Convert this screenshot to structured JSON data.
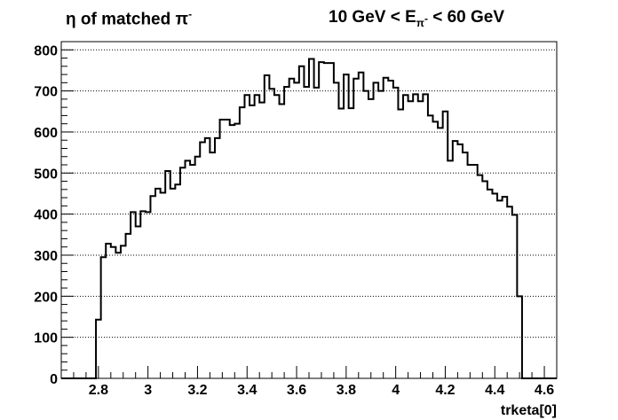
{
  "title_left": {
    "prefix": "η of matched π",
    "superscript": "-"
  },
  "title_right": {
    "part1": "10 GeV < E",
    "subscript": "π",
    "subscript_sup": "-",
    "part2": " < 60 GeV"
  },
  "chart_data": {
    "type": "histogram",
    "xlabel": "trketa[0]",
    "ylabel": "",
    "xlim": [
      2.65,
      4.65
    ],
    "ylim": [
      0,
      820
    ],
    "grid": "horizontal dotted",
    "bin_width": 0.02,
    "x_ticks": [
      "2.8",
      "3",
      "3.2",
      "3.4",
      "3.6",
      "3.8",
      "4",
      "4.2",
      "4.4",
      "4.6"
    ],
    "y_ticks": [
      "0",
      "100",
      "200",
      "300",
      "400",
      "500",
      "600",
      "700",
      "800"
    ],
    "bins": [
      [
        2.65,
        0
      ],
      [
        2.67,
        0
      ],
      [
        2.69,
        0
      ],
      [
        2.71,
        0
      ],
      [
        2.73,
        0
      ],
      [
        2.75,
        0
      ],
      [
        2.77,
        0
      ],
      [
        2.79,
        143
      ],
      [
        2.81,
        295
      ],
      [
        2.83,
        328
      ],
      [
        2.85,
        320
      ],
      [
        2.87,
        306
      ],
      [
        2.89,
        323
      ],
      [
        2.91,
        352
      ],
      [
        2.93,
        405
      ],
      [
        2.95,
        370
      ],
      [
        2.97,
        407
      ],
      [
        2.99,
        405
      ],
      [
        3.01,
        444
      ],
      [
        3.03,
        462
      ],
      [
        3.05,
        452
      ],
      [
        3.07,
        505
      ],
      [
        3.09,
        462
      ],
      [
        3.11,
        472
      ],
      [
        3.13,
        513
      ],
      [
        3.15,
        530
      ],
      [
        3.17,
        520
      ],
      [
        3.19,
        540
      ],
      [
        3.21,
        575
      ],
      [
        3.23,
        585
      ],
      [
        3.25,
        550
      ],
      [
        3.27,
        585
      ],
      [
        3.29,
        630
      ],
      [
        3.31,
        630
      ],
      [
        3.33,
        617
      ],
      [
        3.35,
        620
      ],
      [
        3.37,
        660
      ],
      [
        3.39,
        690
      ],
      [
        3.41,
        665
      ],
      [
        3.43,
        690
      ],
      [
        3.45,
        672
      ],
      [
        3.47,
        738
      ],
      [
        3.49,
        705
      ],
      [
        3.51,
        690
      ],
      [
        3.53,
        668
      ],
      [
        3.55,
        710
      ],
      [
        3.57,
        730
      ],
      [
        3.59,
        720
      ],
      [
        3.61,
        760
      ],
      [
        3.63,
        710
      ],
      [
        3.65,
        778
      ],
      [
        3.67,
        708
      ],
      [
        3.69,
        770
      ],
      [
        3.71,
        768
      ],
      [
        3.73,
        768
      ],
      [
        3.75,
        720
      ],
      [
        3.77,
        657
      ],
      [
        3.79,
        740
      ],
      [
        3.81,
        658
      ],
      [
        3.83,
        730
      ],
      [
        3.85,
        745
      ],
      [
        3.87,
        700
      ],
      [
        3.89,
        680
      ],
      [
        3.91,
        720
      ],
      [
        3.93,
        700
      ],
      [
        3.95,
        732
      ],
      [
        3.97,
        725
      ],
      [
        3.99,
        708
      ],
      [
        4.01,
        655
      ],
      [
        4.03,
        690
      ],
      [
        4.05,
        675
      ],
      [
        4.07,
        692
      ],
      [
        4.09,
        675
      ],
      [
        4.11,
        692
      ],
      [
        4.13,
        640
      ],
      [
        4.15,
        625
      ],
      [
        4.17,
        610
      ],
      [
        4.19,
        650
      ],
      [
        4.21,
        530
      ],
      [
        4.23,
        578
      ],
      [
        4.25,
        570
      ],
      [
        4.27,
        550
      ],
      [
        4.29,
        520
      ],
      [
        4.31,
        520
      ],
      [
        4.33,
        495
      ],
      [
        4.35,
        480
      ],
      [
        4.37,
        460
      ],
      [
        4.39,
        450
      ],
      [
        4.41,
        433
      ],
      [
        4.43,
        442
      ],
      [
        4.45,
        418
      ],
      [
        4.47,
        398
      ],
      [
        4.49,
        200
      ],
      [
        4.51,
        0
      ],
      [
        4.53,
        0
      ],
      [
        4.55,
        0
      ],
      [
        4.57,
        0
      ],
      [
        4.59,
        0
      ],
      [
        4.61,
        0
      ],
      [
        4.63,
        0
      ]
    ]
  }
}
